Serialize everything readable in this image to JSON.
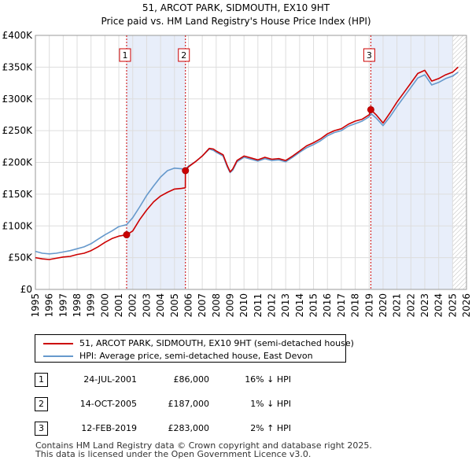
{
  "chart_data": {
    "type": "line",
    "title": "51, ARCOT PARK, SIDMOUTH, EX10 9HT",
    "subtitle": "Price paid vs. HM Land Registry's House Price Index (HPI)",
    "xlabel": "",
    "ylabel": "",
    "xlim": [
      1995,
      2026
    ],
    "ylim": [
      0,
      400000
    ],
    "y_ticks": [
      0,
      50000,
      100000,
      150000,
      200000,
      250000,
      300000,
      350000,
      400000
    ],
    "y_tick_labels": [
      "£0",
      "£50K",
      "£100K",
      "£150K",
      "£200K",
      "£250K",
      "£300K",
      "£350K",
      "£400K"
    ],
    "x_ticks": [
      1995,
      1996,
      1997,
      1998,
      1999,
      2000,
      2001,
      2002,
      2003,
      2004,
      2005,
      2006,
      2007,
      2008,
      2009,
      2010,
      2011,
      2012,
      2013,
      2014,
      2015,
      2016,
      2017,
      2018,
      2019,
      2020,
      2021,
      2022,
      2023,
      2024,
      2025,
      2026
    ],
    "x_tick_labels": [
      "1995",
      "1996",
      "1997",
      "1998",
      "1999",
      "2000",
      "2001",
      "2002",
      "2003",
      "2004",
      "2005",
      "2006",
      "2007",
      "2008",
      "2009",
      "2010",
      "2011",
      "2012",
      "2013",
      "2014",
      "2015",
      "2016",
      "2017",
      "2018",
      "2019",
      "2020",
      "2021",
      "2022",
      "2023",
      "2024",
      "2025",
      "2026"
    ],
    "grid": true,
    "forecast_start": 2025.0,
    "shaded_periods": [
      [
        2001.56,
        2005.79
      ],
      [
        2019.12,
        2025.0
      ]
    ],
    "series": [
      {
        "name": "51, ARCOT PARK, SIDMOUTH, EX10 9HT (semi-detached house)",
        "color": "#cc0000",
        "x": [
          1995.0,
          1995.5,
          1996.0,
          1996.5,
          1997.0,
          1997.5,
          1998.0,
          1998.5,
          1999.0,
          1999.5,
          2000.0,
          2000.5,
          2001.0,
          2001.56,
          2002.0,
          2002.5,
          2003.0,
          2003.5,
          2004.0,
          2004.5,
          2005.0,
          2005.5,
          2005.78,
          2005.79,
          2006.0,
          2006.5,
          2007.0,
          2007.5,
          2007.8,
          2008.0,
          2008.5,
          2008.8,
          2009.0,
          2009.2,
          2009.5,
          2010.0,
          2010.5,
          2011.0,
          2011.5,
          2012.0,
          2012.5,
          2013.0,
          2013.5,
          2014.0,
          2014.5,
          2015.0,
          2015.5,
          2016.0,
          2016.5,
          2017.0,
          2017.5,
          2018.0,
          2018.5,
          2019.0,
          2019.12,
          2019.5,
          2020.0,
          2020.5,
          2021.0,
          2021.5,
          2022.0,
          2022.5,
          2023.0,
          2023.5,
          2024.0,
          2024.5,
          2025.0,
          2025.4
        ],
        "y": [
          50000,
          48000,
          47000,
          49000,
          51000,
          52000,
          55000,
          57000,
          61000,
          67000,
          74000,
          80000,
          84000,
          86000,
          92000,
          110000,
          125000,
          138000,
          147000,
          153000,
          158000,
          159000,
          160000,
          187000,
          193000,
          201000,
          210000,
          222000,
          221000,
          218000,
          212000,
          195000,
          185000,
          190000,
          203000,
          210000,
          207000,
          204000,
          208000,
          205000,
          206000,
          203000,
          210000,
          218000,
          226000,
          231000,
          237000,
          245000,
          250000,
          253000,
          260000,
          265000,
          268000,
          275000,
          283000,
          275000,
          262000,
          278000,
          295000,
          310000,
          325000,
          340000,
          345000,
          328000,
          332000,
          338000,
          342000,
          350000
        ]
      },
      {
        "name": "HPI: Average price, semi-detached house, East Devon",
        "color": "#6699cc",
        "x": [
          1995.0,
          1995.5,
          1996.0,
          1996.5,
          1997.0,
          1997.5,
          1998.0,
          1998.5,
          1999.0,
          1999.5,
          2000.0,
          2000.5,
          2001.0,
          2001.56,
          2002.0,
          2002.5,
          2003.0,
          2003.5,
          2004.0,
          2004.5,
          2005.0,
          2005.5,
          2005.79,
          2006.0,
          2006.5,
          2007.0,
          2007.5,
          2007.8,
          2008.0,
          2008.5,
          2008.8,
          2009.0,
          2009.2,
          2009.5,
          2010.0,
          2010.5,
          2011.0,
          2011.5,
          2012.0,
          2012.5,
          2013.0,
          2013.5,
          2014.0,
          2014.5,
          2015.0,
          2015.5,
          2016.0,
          2016.5,
          2017.0,
          2017.5,
          2018.0,
          2018.5,
          2019.0,
          2019.12,
          2019.5,
          2020.0,
          2020.5,
          2021.0,
          2021.5,
          2022.0,
          2022.5,
          2023.0,
          2023.5,
          2024.0,
          2024.5,
          2025.0,
          2025.4
        ],
        "y": [
          60000,
          57000,
          56000,
          57000,
          59000,
          61000,
          64000,
          67000,
          72000,
          79000,
          86000,
          92000,
          99000,
          102000,
          113000,
          130000,
          148000,
          163000,
          177000,
          187000,
          191000,
          190000,
          189000,
          194000,
          201000,
          210000,
          221000,
          219000,
          216000,
          210000,
          193000,
          184000,
          188000,
          201000,
          208000,
          205000,
          202000,
          206000,
          203000,
          204000,
          201000,
          208000,
          216000,
          223000,
          228000,
          234000,
          242000,
          247000,
          250000,
          257000,
          261000,
          265000,
          272000,
          277000,
          270000,
          258000,
          272000,
          288000,
          303000,
          318000,
          333000,
          338000,
          322000,
          326000,
          332000,
          336000,
          342000
        ]
      }
    ],
    "transactions": [
      {
        "label": "1",
        "x": 2001.56,
        "y": 86000
      },
      {
        "label": "2",
        "x": 2005.79,
        "y": 187000
      },
      {
        "label": "3",
        "x": 2019.12,
        "y": 283000
      }
    ]
  },
  "legend": [
    {
      "label": "51, ARCOT PARK, SIDMOUTH, EX10 9HT (semi-detached house)",
      "color": "#cc0000"
    },
    {
      "label": "HPI: Average price, semi-detached house, East Devon",
      "color": "#6699cc"
    }
  ],
  "table": [
    {
      "num": "1",
      "date": "24-JUL-2001",
      "price": "£86,000",
      "hpi": "16% ↓ HPI"
    },
    {
      "num": "2",
      "date": "14-OCT-2005",
      "price": "£187,000",
      "hpi": "1% ↓ HPI"
    },
    {
      "num": "3",
      "date": "12-FEB-2019",
      "price": "£283,000",
      "hpi": "2% ↑ HPI"
    }
  ],
  "footer": {
    "line1": "Contains HM Land Registry data © Crown copyright and database right 2025.",
    "line2": "This data is licensed under the Open Government Licence v3.0."
  }
}
